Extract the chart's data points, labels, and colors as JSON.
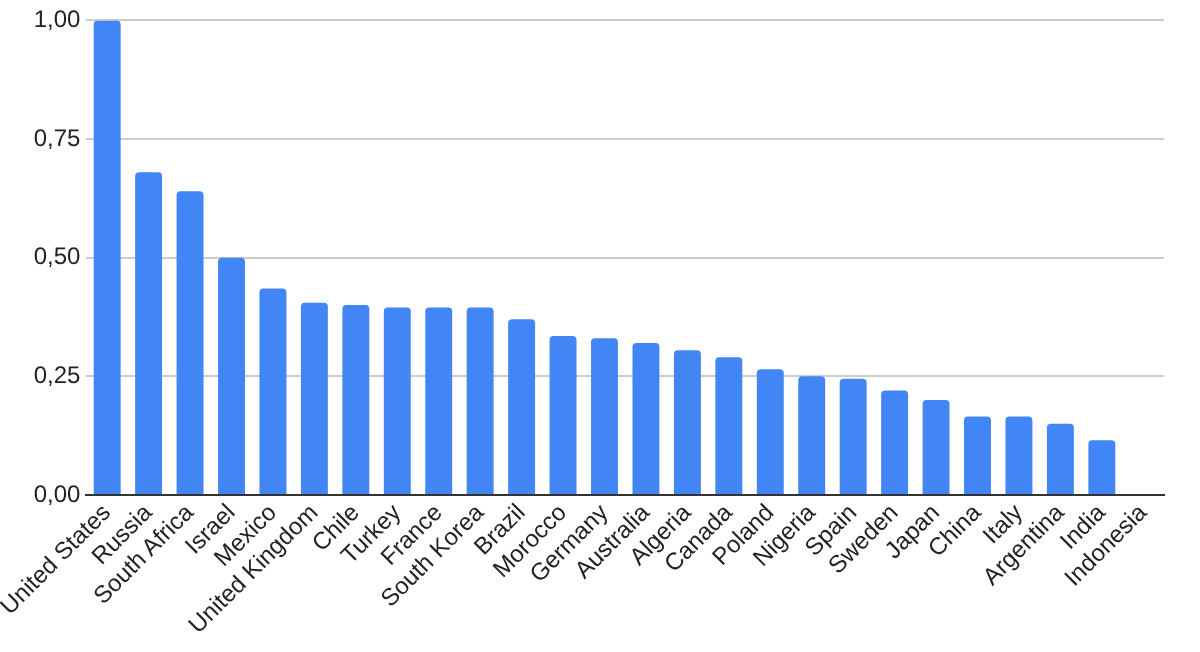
{
  "chart_data": {
    "type": "bar",
    "categories": [
      "United States",
      "Russia",
      "South Africa",
      "Israel",
      "Mexico",
      "United Kingdom",
      "Chile",
      "Turkey",
      "France",
      "South Korea",
      "Brazil",
      "Morocco",
      "Germany",
      "Australia",
      "Algeria",
      "Canada",
      "Poland",
      "Nigeria",
      "Spain",
      "Sweden",
      "Japan",
      "China",
      "Italy",
      "Argentina",
      "India",
      "Indonesia"
    ],
    "values": [
      1.0,
      0.68,
      0.64,
      0.5,
      0.435,
      0.405,
      0.4,
      0.395,
      0.395,
      0.395,
      0.37,
      0.335,
      0.33,
      0.32,
      0.305,
      0.29,
      0.265,
      0.25,
      0.245,
      0.22,
      0.2,
      0.165,
      0.165,
      0.15,
      0.115,
      0
    ],
    "color": "#4285f4",
    "ylim": [
      0,
      1
    ],
    "yticks": [
      {
        "value": 0,
        "label": "0,00"
      },
      {
        "value": 0.25,
        "label": "0,25"
      },
      {
        "value": 0.5,
        "label": "0,50"
      },
      {
        "value": 0.75,
        "label": "0,75"
      },
      {
        "value": 1,
        "label": "1,00"
      }
    ],
    "grid": "y",
    "legend": false
  }
}
